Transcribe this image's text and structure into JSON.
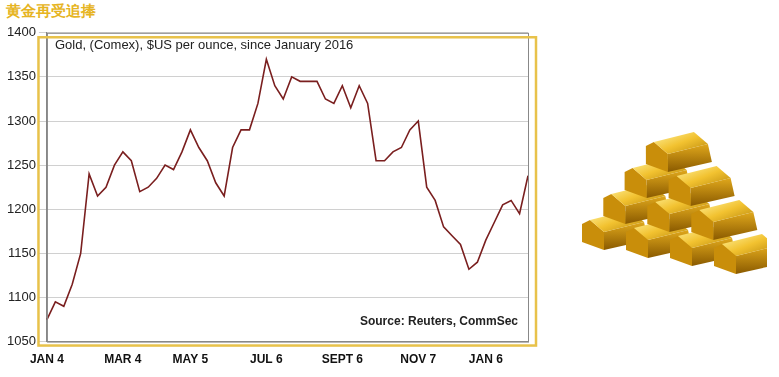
{
  "chart_data": {
    "type": "line",
    "title": "黄金再受追捧",
    "subtitle": "Gold, (Comex), $US per ounce, since January 2016",
    "annotations": [
      "Source: Reuters, CommSec"
    ],
    "categories": [
      "JAN 4",
      null,
      null,
      null,
      null,
      null,
      null,
      null,
      null,
      "MAR 4",
      null,
      null,
      null,
      null,
      null,
      null,
      null,
      "MAY 5",
      null,
      null,
      null,
      null,
      null,
      null,
      null,
      null,
      "JUL 6",
      null,
      null,
      null,
      null,
      null,
      null,
      null,
      null,
      "SEPT 6",
      null,
      null,
      null,
      null,
      null,
      null,
      null,
      null,
      "NOV 7",
      null,
      null,
      null,
      null,
      null,
      null,
      null,
      "JAN 6",
      null,
      null,
      null,
      null,
      null
    ],
    "values": [
      1075,
      1095,
      1090,
      1115,
      1150,
      1240,
      1215,
      1225,
      1250,
      1265,
      1255,
      1220,
      1225,
      1235,
      1250,
      1245,
      1265,
      1290,
      1270,
      1255,
      1230,
      1215,
      1270,
      1290,
      1290,
      1320,
      1370,
      1340,
      1325,
      1350,
      1345,
      1345,
      1345,
      1325,
      1320,
      1340,
      1315,
      1340,
      1320,
      1255,
      1255,
      1265,
      1270,
      1290,
      1300,
      1225,
      1210,
      1180,
      1170,
      1160,
      1132,
      1140,
      1165,
      1185,
      1205,
      1210,
      1195,
      1238
    ],
    "color": "#7a1f1f",
    "ylim": [
      1050,
      1400
    ],
    "yticks": [
      1050,
      1100,
      1150,
      1200,
      1250,
      1300,
      1350,
      1400
    ],
    "grid": true
  }
}
